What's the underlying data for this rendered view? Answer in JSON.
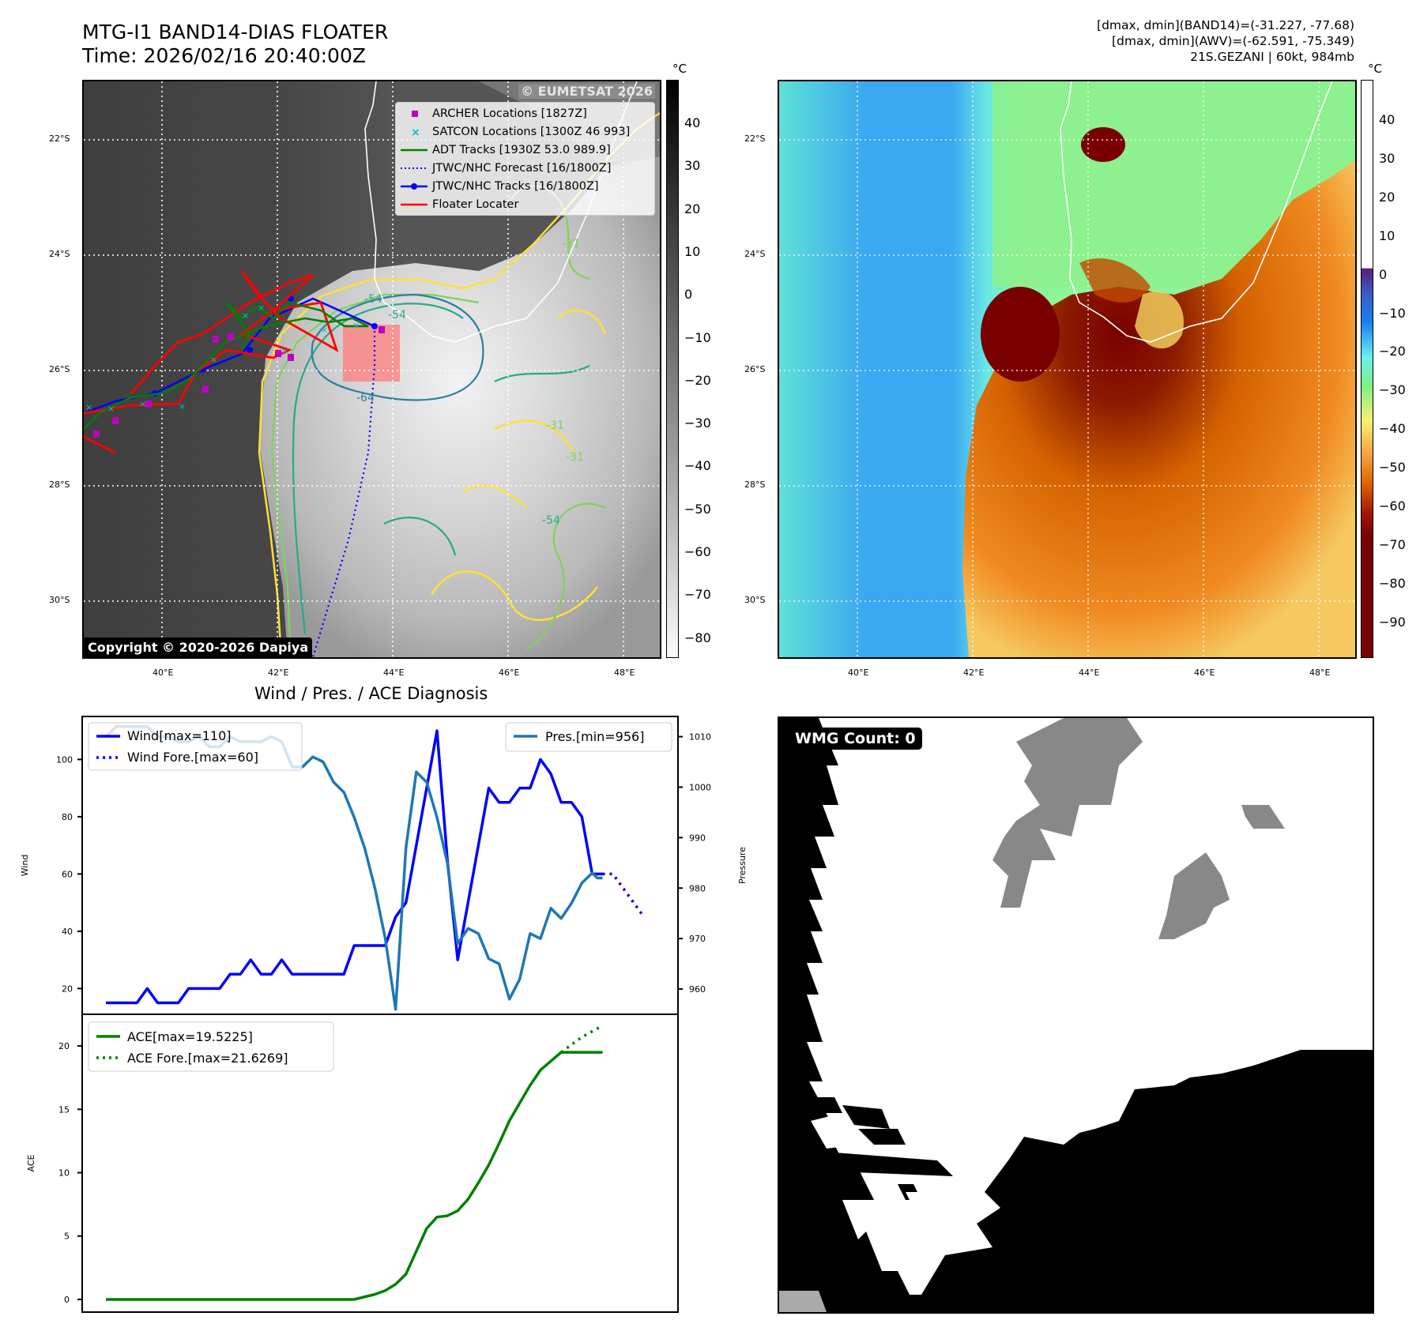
{
  "header": {
    "title_line1": "MTG-I1 BAND14-DIAS FLOATER",
    "title_line2": "Time: 2026/02/16 20:40:00Z",
    "info_line1": "[dmax, dmin](BAND14)=(-31.227, -77.68)",
    "info_line2": "[dmax, dmin](AWV)=(-62.591, -75.349)",
    "info_line3": "21S.GEZANI | 60kt, 984mb"
  },
  "map_axes": {
    "lat_labels": [
      "22°S",
      "24°S",
      "26°S",
      "28°S",
      "30°S"
    ],
    "lon_labels": [
      "40°E",
      "42°E",
      "44°E",
      "46°E",
      "48°E"
    ]
  },
  "left_map": {
    "watermark": "© EUMETSAT 2026",
    "copyright": "Copyright © 2020-2026 Dapiya",
    "contour_labels": [
      "-54",
      "-54",
      "-64",
      "-31",
      "-31",
      "-54",
      "-31"
    ],
    "legend": [
      {
        "label": "ARCHER Locations [1827Z]",
        "symbol": "square-marker",
        "color": "#c000c0"
      },
      {
        "label": "SATCON Locations [1300Z 46 993]",
        "symbol": "x-marker",
        "color": "#00c0c0"
      },
      {
        "label": "ADT Tracks [1930Z 53.0 989.9]",
        "symbol": "solid-line",
        "color": "#008000"
      },
      {
        "label": "JTWC/NHC Forecast [16/1800Z]",
        "symbol": "dotted-line",
        "color": "#0000ff"
      },
      {
        "label": "JTWC/NHC Tracks [16/1800Z]",
        "symbol": "line-dot",
        "color": "#0000ff"
      },
      {
        "label": "Floater Locater",
        "symbol": "solid-line",
        "color": "#ff0000"
      }
    ],
    "colorbar": {
      "unit": "°C",
      "ticks": [
        "40",
        "30",
        "20",
        "10",
        "0",
        "−10",
        "−20",
        "−30",
        "−40",
        "−50",
        "−60",
        "−70",
        "−80"
      ]
    }
  },
  "right_map": {
    "colorbar": {
      "unit": "°C",
      "ticks": [
        "40",
        "30",
        "20",
        "10",
        "0",
        "−10",
        "−20",
        "−30",
        "−40",
        "−50",
        "−60",
        "−70",
        "−80",
        "−90"
      ]
    }
  },
  "wmg": {
    "count_label": "WMG Count: 0"
  },
  "chart_data": [
    {
      "type": "line",
      "title": "Wind / Pres. / ACE Diagnosis",
      "ylabel": "Wind",
      "y2label": "Pressure",
      "ylim": [
        11,
        115
      ],
      "y2lim": [
        955,
        1014
      ],
      "yticks": [
        "20",
        "40",
        "60",
        "80",
        "100"
      ],
      "y2ticks": [
        "960",
        "970",
        "980",
        "990",
        "1000",
        "1010"
      ],
      "legend_left": [
        "Wind[max=110]",
        "Wind Fore.[max=60]"
      ],
      "legend_right": [
        "Pres.[min=956]"
      ],
      "series": [
        {
          "name": "Wind",
          "color": "#0000ff",
          "style": "solid",
          "axis": "left",
          "x": [
            0,
            3,
            4,
            5,
            7,
            8,
            9,
            11,
            12,
            13,
            14,
            15,
            16,
            17,
            18,
            19,
            23,
            24,
            27,
            28,
            29,
            31,
            32,
            33,
            34,
            35,
            37,
            38,
            39,
            40,
            41,
            42,
            43,
            44,
            45,
            46,
            47,
            48
          ],
          "y": [
            15,
            15,
            20,
            15,
            15,
            20,
            20,
            20,
            25,
            25,
            30,
            25,
            25,
            30,
            25,
            25,
            25,
            35,
            35,
            45,
            50,
            90,
            110,
            65,
            30,
            50,
            90,
            85,
            85,
            90,
            90,
            100,
            95,
            85,
            85,
            80,
            60,
            60
          ]
        },
        {
          "name": "Wind Fore.",
          "color": "#0000ff",
          "style": "dotted",
          "axis": "left",
          "x": [
            48,
            49,
            50,
            51,
            52
          ],
          "y": [
            60,
            60,
            55,
            50,
            45
          ]
        },
        {
          "name": "Pres.",
          "color": "#1f77b4",
          "style": "solid",
          "axis": "right",
          "x": [
            0,
            1,
            2,
            3,
            4,
            5,
            6,
            7,
            8,
            9,
            10,
            11,
            12,
            13,
            14,
            15,
            16,
            17,
            18,
            19,
            20,
            21,
            22,
            23,
            24,
            25,
            26,
            27,
            28,
            29,
            30,
            31,
            32,
            33,
            34,
            35,
            36,
            37,
            38,
            39,
            40,
            41,
            42,
            43,
            44,
            45,
            46,
            47,
            47.5,
            48
          ],
          "y": [
            1010,
            1012,
            1012,
            1012,
            1012,
            1010,
            1010,
            1009,
            1009,
            1010,
            1008,
            1008,
            1010,
            1009,
            1009,
            1009,
            1010,
            1009,
            1004,
            1004,
            1006,
            1005,
            1001,
            999,
            994,
            988,
            980,
            970,
            956,
            988,
            1003,
            1001,
            994,
            985,
            969,
            972,
            971,
            966,
            965,
            958,
            962,
            971,
            970,
            976,
            974,
            977,
            981,
            983,
            982,
            982
          ]
        }
      ]
    },
    {
      "type": "line",
      "ylabel": "ACE",
      "ylim": [
        -1,
        22.5
      ],
      "yticks": [
        "0",
        "5",
        "10",
        "15",
        "20"
      ],
      "legend": [
        "ACE[max=19.5225]",
        "ACE Fore.[max=21.6269]"
      ],
      "series": [
        {
          "name": "ACE",
          "color": "#008000",
          "style": "solid",
          "x": [
            0,
            24,
            25,
            26,
            27,
            28,
            29,
            30,
            31,
            32,
            33,
            34,
            35,
            36,
            37,
            38,
            39,
            40,
            41,
            42,
            43,
            44,
            45,
            46,
            47,
            48
          ],
          "y": [
            0,
            0,
            0.2,
            0.4,
            0.7,
            1.2,
            2.0,
            3.8,
            5.6,
            6.5,
            6.6,
            7.0,
            7.9,
            9.2,
            10.6,
            12.3,
            14.1,
            15.5,
            16.9,
            18.1,
            18.8,
            19.5,
            19.5,
            19.5,
            19.5,
            19.5
          ]
        },
        {
          "name": "ACE Fore.",
          "color": "#008000",
          "style": "dotted",
          "x": [
            44,
            46,
            48
          ],
          "y": [
            19.5,
            20.7,
            21.6
          ]
        }
      ]
    }
  ]
}
